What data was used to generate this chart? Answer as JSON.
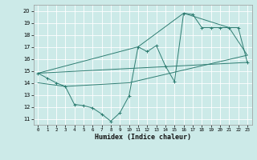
{
  "xlabel": "Humidex (Indice chaleur)",
  "bg_color": "#cceae8",
  "line_color": "#2e7d72",
  "grid_color": "#b0d8d4",
  "xlim": [
    -0.5,
    23.5
  ],
  "ylim": [
    10.5,
    20.5
  ],
  "xticks": [
    0,
    1,
    2,
    3,
    4,
    5,
    6,
    7,
    8,
    9,
    10,
    11,
    12,
    13,
    14,
    15,
    16,
    17,
    18,
    19,
    20,
    21,
    22,
    23
  ],
  "yticks": [
    11,
    12,
    13,
    14,
    15,
    16,
    17,
    18,
    19,
    20
  ],
  "series1_x": [
    0,
    1,
    2,
    3,
    4,
    5,
    6,
    7,
    8,
    9,
    10,
    11,
    12,
    13,
    14,
    15,
    16,
    17,
    18,
    19,
    20,
    21,
    22,
    23
  ],
  "series1_y": [
    14.8,
    14.4,
    14.0,
    13.7,
    12.2,
    12.1,
    11.9,
    11.4,
    10.8,
    11.5,
    12.9,
    17.0,
    16.6,
    17.1,
    15.4,
    14.1,
    19.8,
    19.7,
    18.6,
    18.6,
    18.6,
    18.6,
    18.6,
    15.7
  ],
  "series2_x": [
    0,
    11,
    16,
    21,
    23
  ],
  "series2_y": [
    14.8,
    17.0,
    19.8,
    18.6,
    16.3
  ],
  "series3_x": [
    0,
    23
  ],
  "series3_y": [
    14.8,
    15.7
  ],
  "series4_x": [
    0,
    3,
    10,
    23
  ],
  "series4_y": [
    14.0,
    13.7,
    14.0,
    16.3
  ]
}
